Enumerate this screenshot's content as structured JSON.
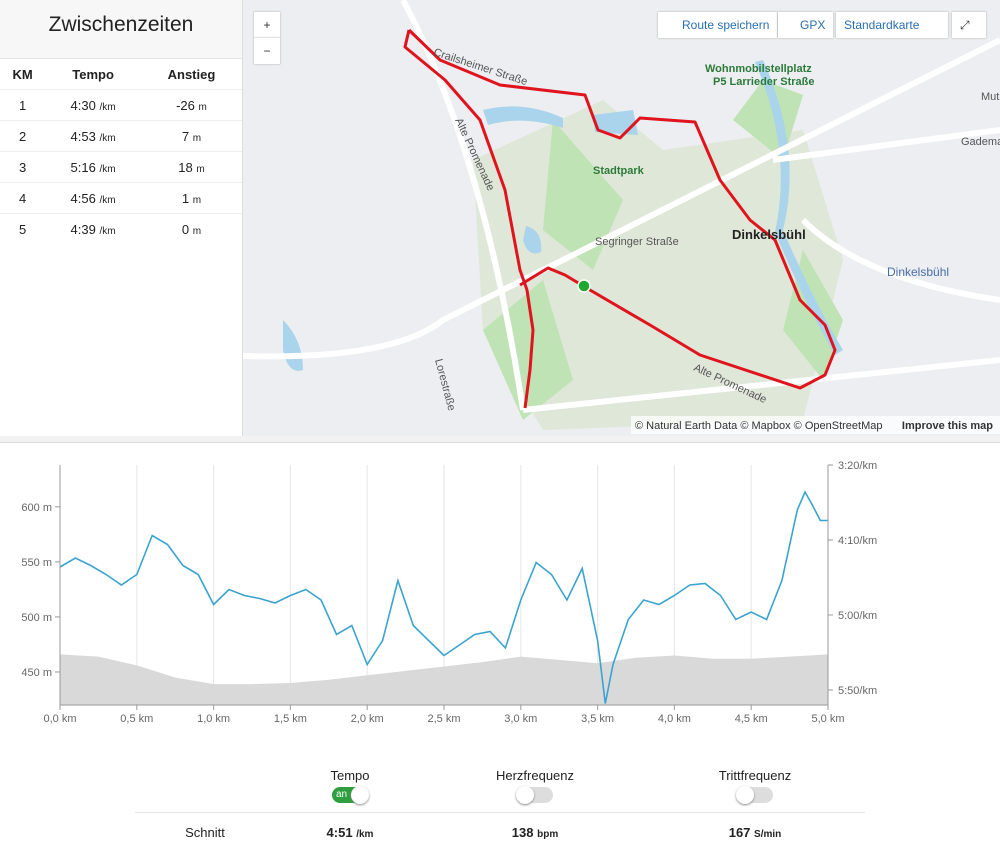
{
  "splits": {
    "title": "Zwischenzeiten",
    "headers": [
      "KM",
      "Tempo",
      "Anstieg"
    ],
    "rows": [
      [
        "1",
        "4:30",
        "/km",
        "-26",
        "m"
      ],
      [
        "2",
        "4:53",
        "/km",
        "7",
        "m"
      ],
      [
        "3",
        "5:16",
        "/km",
        "18",
        "m"
      ],
      [
        "4",
        "4:56",
        "/km",
        "1",
        "m"
      ],
      [
        "5",
        "4:39",
        "/km",
        "0",
        "m"
      ]
    ]
  },
  "map": {
    "zoom_in": "+",
    "zoom_out": "−",
    "buttons": [
      "Route speichern",
      "GPX",
      "Standardkarte"
    ],
    "labels": [
      "Wohnmobilstellplatz",
      "P5 Larrieder Straße",
      "Stadtpark",
      "Dinkelsbühl",
      "Dinkelsbühl",
      "Segringer Straße",
      "Alte Promenade",
      "Lorestraße",
      "Crailsheimer Straße",
      "Alte Promenade",
      "Mutsch",
      "Gademar"
    ],
    "attribution": "© Natural Earth Data © Mapbox © OpenStreetMap",
    "improve": "Improve this map"
  },
  "chart_data": {
    "type": "line",
    "xlim": [
      0,
      5
    ],
    "xticks": [
      {
        "value": 0,
        "label": "0,0 km"
      },
      {
        "value": 0.5,
        "label": "0,5 km"
      },
      {
        "value": 1,
        "label": "1,0 km"
      },
      {
        "value": 1.5,
        "label": "1,5 km"
      },
      {
        "value": 2,
        "label": "2,0 km"
      },
      {
        "value": 2.5,
        "label": "2,5 km"
      },
      {
        "value": 3,
        "label": "3,0 km"
      },
      {
        "value": 3.5,
        "label": "3,5 km"
      },
      {
        "value": 4,
        "label": "4,0 km"
      },
      {
        "value": 4.5,
        "label": "4,5 km"
      },
      {
        "value": 5,
        "label": "5,0 km"
      }
    ],
    "ylim": [
      420,
      638
    ],
    "yticks": [
      {
        "value": 450,
        "label": "450 m"
      },
      {
        "value": 500,
        "label": "500 m"
      },
      {
        "value": 550,
        "label": "550 m"
      },
      {
        "value": 600,
        "label": "600 m"
      }
    ],
    "y2lim": [
      200,
      360
    ],
    "y2_inverted": true,
    "y2ticks": [
      {
        "value": 200,
        "label": "3:20/km"
      },
      {
        "value": 250,
        "label": "4:10/km"
      },
      {
        "value": 300,
        "label": "5:00/km"
      },
      {
        "value": 350,
        "label": "5:50/km"
      }
    ],
    "xgrid": true,
    "series": [
      {
        "kind": "area",
        "color": "#d9d9d9",
        "x": [
          0,
          0.25,
          0.5,
          0.75,
          1,
          1.25,
          1.5,
          1.75,
          2,
          2.25,
          2.5,
          2.75,
          3,
          3.25,
          3.5,
          3.75,
          4,
          4.25,
          4.5,
          4.75,
          5
        ],
        "values": [
          466,
          464,
          456,
          445,
          439,
          439,
          440,
          443,
          447,
          451,
          455,
          459,
          464,
          461,
          458,
          463,
          465,
          462,
          462,
          464,
          466
        ]
      },
      {
        "kind": "line",
        "axis": "y2",
        "color": "#3aa3d0",
        "x": [
          0,
          0.1,
          0.2,
          0.3,
          0.4,
          0.5,
          0.6,
          0.7,
          0.8,
          0.9,
          1,
          1.1,
          1.2,
          1.3,
          1.4,
          1.5,
          1.6,
          1.7,
          1.8,
          1.9,
          2,
          2.1,
          2.2,
          2.3,
          2.4,
          2.5,
          2.6,
          2.7,
          2.8,
          2.9,
          3,
          3.1,
          3.2,
          3.3,
          3.4,
          3.5,
          3.55,
          3.6,
          3.7,
          3.8,
          3.9,
          4,
          4.1,
          4.2,
          4.3,
          4.4,
          4.5,
          4.6,
          4.7,
          4.8,
          4.85,
          4.9,
          4.95,
          5
        ],
        "values": [
          268,
          262,
          267,
          273,
          280,
          273,
          247,
          253,
          267,
          273,
          293,
          283,
          287,
          289,
          292,
          287,
          283,
          290,
          313,
          307,
          333,
          317,
          277,
          307,
          317,
          327,
          320,
          313,
          311,
          322,
          290,
          265,
          273,
          290,
          269,
          317,
          359,
          333,
          303,
          290,
          293,
          287,
          280,
          279,
          287,
          303,
          298,
          303,
          277,
          230,
          218,
          227,
          237,
          237
        ]
      }
    ]
  },
  "controls": {
    "items": [
      {
        "label": "Tempo",
        "on": true,
        "state": "an"
      },
      {
        "label": "Herzfrequenz",
        "on": false
      },
      {
        "label": "Trittfrequenz",
        "on": false
      }
    ],
    "avg_label": "Schnitt",
    "avgs": [
      [
        "4:51",
        "/km"
      ],
      [
        "138",
        "bpm"
      ],
      [
        "167",
        "S/min"
      ]
    ]
  }
}
